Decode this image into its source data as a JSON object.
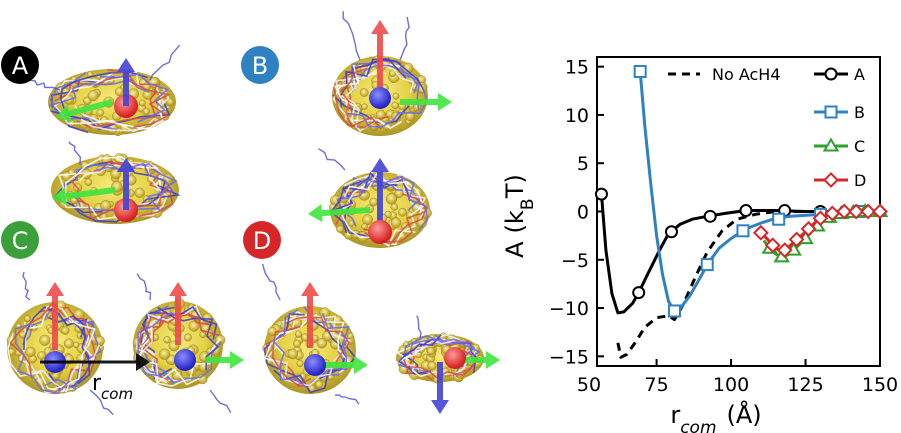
{
  "panel_labels": [
    {
      "text": "A",
      "color": "#000000"
    },
    {
      "text": "B",
      "color": "#2e82c3"
    },
    {
      "text": "C",
      "color": "#3aa13a"
    },
    {
      "text": "D",
      "color": "#d62728"
    }
  ],
  "diagram": {
    "distance_label": "r",
    "distance_subscript": "com",
    "arrow_colors": {
      "red": "#ef4a4a",
      "blue": "#4343d8",
      "green": "#3ee53e"
    }
  },
  "chart_data": {
    "type": "line",
    "xlabel_main": "r",
    "xlabel_sub": "com",
    "xlabel_unit": "(Å)",
    "ylabel_main": "A",
    "ylabel_open": "(k",
    "ylabel_sub": "B",
    "ylabel_close": "T)",
    "xlim": [
      55,
      150
    ],
    "ylim": [
      -16,
      16
    ],
    "xticks": [
      50,
      75,
      100,
      125,
      150
    ],
    "yticks": [
      15,
      10,
      5,
      0,
      -5,
      -10,
      -15
    ],
    "xtick_labels": [
      "50",
      "75",
      "100",
      "125",
      "150"
    ],
    "ytick_labels": [
      "15",
      "10",
      "5",
      "0",
      "−5",
      "−10",
      "−15"
    ],
    "legend_position": "top-right",
    "series": [
      {
        "name": "No AcH4",
        "color": "#000000",
        "dash": "8,6",
        "marker": "none",
        "x": [
          62,
          63,
          65,
          68,
          71,
          75,
          79,
          81,
          84,
          88,
          92,
          97,
          102,
          108,
          115,
          125,
          135,
          150
        ],
        "y": [
          -13.6,
          -15.1,
          -14.8,
          -13.5,
          -12.0,
          -11.0,
          -10.8,
          -11.2,
          -9.6,
          -6.8,
          -4.2,
          -2.0,
          -0.8,
          -0.3,
          0,
          0,
          0,
          0
        ]
      },
      {
        "name": "A",
        "color": "#000000",
        "marker": "circle",
        "x": [
          56.5,
          58,
          60,
          62,
          64,
          67,
          69,
          72,
          76,
          79,
          83,
          87,
          92,
          98,
          105,
          115,
          125,
          135,
          150
        ],
        "y": [
          1.8,
          -4.0,
          -8.5,
          -10.5,
          -10.4,
          -9.5,
          -8.4,
          -6.5,
          -4.0,
          -2.3,
          -1.3,
          -0.8,
          -0.5,
          -0.2,
          0.1,
          0.1,
          0,
          0,
          0
        ],
        "markers_x": [
          56.5,
          69,
          80,
          93,
          105,
          118,
          130,
          143
        ],
        "markers_y": [
          1.8,
          -8.4,
          -2.1,
          -0.5,
          0.1,
          0.1,
          0,
          0
        ]
      },
      {
        "name": "B",
        "color": "#2e82c3",
        "marker": "square",
        "x": [
          69.5,
          71,
          73,
          75,
          77,
          79,
          81,
          83,
          86,
          89,
          92,
          96,
          100,
          105,
          110,
          115,
          120,
          130,
          150
        ],
        "y": [
          14.5,
          9.0,
          3.0,
          -2.5,
          -6.5,
          -9.3,
          -10.3,
          -10.0,
          -8.8,
          -7.2,
          -5.5,
          -3.8,
          -2.8,
          -1.8,
          -1.2,
          -0.7,
          -0.5,
          -0.3,
          0
        ],
        "markers_x": [
          69.5,
          81,
          92,
          104,
          116,
          130,
          143
        ],
        "markers_y": [
          14.5,
          -10.3,
          -5.5,
          -2.0,
          -0.8,
          -0.3,
          0
        ]
      },
      {
        "name": "C",
        "color": "#2ca02c",
        "marker": "triangle",
        "x": [
          111,
          113,
          115,
          117,
          119,
          121,
          123,
          125,
          127,
          129,
          131,
          133,
          136,
          140,
          144,
          150
        ],
        "y": [
          -3.0,
          -3.8,
          -4.4,
          -4.7,
          -4.5,
          -4.0,
          -3.4,
          -2.8,
          -2.1,
          -1.5,
          -1.0,
          -0.6,
          -0.3,
          -0.1,
          0,
          0
        ],
        "markers_x": [
          113,
          117,
          121,
          125,
          129,
          133,
          137,
          141,
          145,
          150
        ],
        "markers_y": [
          -3.8,
          -4.7,
          -4.0,
          -2.8,
          -1.5,
          -0.6,
          -0.2,
          -0.1,
          0,
          0
        ]
      },
      {
        "name": "D",
        "color": "#d62728",
        "marker": "diamond",
        "x": [
          110,
          112,
          114,
          116,
          118,
          120,
          122,
          124,
          126,
          128,
          130,
          133,
          136,
          140,
          144,
          150
        ],
        "y": [
          -2.2,
          -2.8,
          -3.5,
          -4.0,
          -4.0,
          -3.5,
          -2.9,
          -2.4,
          -1.8,
          -1.2,
          -0.7,
          -0.3,
          -0.1,
          0,
          0,
          0
        ],
        "markers_x": [
          110,
          114,
          118,
          122,
          126,
          130,
          134,
          138,
          142,
          146,
          150
        ],
        "markers_y": [
          -2.2,
          -3.5,
          -4.0,
          -2.9,
          -1.8,
          -0.7,
          -0.2,
          0,
          0,
          0,
          0
        ]
      }
    ]
  }
}
